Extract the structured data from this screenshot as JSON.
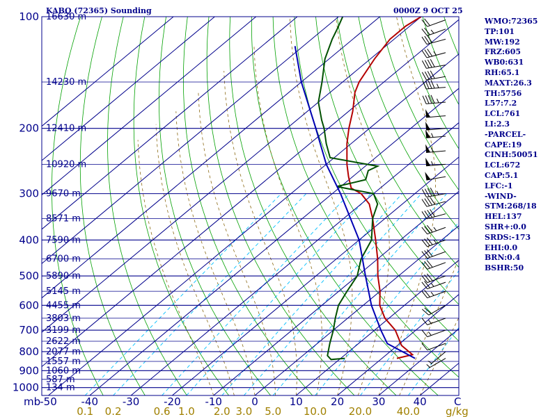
{
  "header": {
    "station_title": "KABQ (72365) Sounding",
    "valid_time": "0000Z  9 OCT 25"
  },
  "indices": [
    "WMO:72365",
    "TP:101",
    "MW:192",
    "FRZ:605",
    "WB0:631",
    "RH:65.1",
    "MAXT:26.3",
    "TH:5756",
    "L57:7.2",
    "LCL:761",
    "LI:2.3",
    "-PARCEL-",
    "CAPE:19",
    "CINH:50051",
    "LCL:672",
    "CAP:5.1",
    "LFC:-1",
    "-WIND-",
    "STM:268/18",
    "HEL:137",
    "SHR+:0.0",
    "SRDS:-173",
    "EHI:0.0",
    "BRN:0.4",
    "BSHR:50"
  ],
  "colors": {
    "isobar": "#00008b",
    "isotherm": "#00008b",
    "dry_adiabat": "#00a000",
    "moist_adiabat": "#8b6914",
    "mixing_ratio": "#00bfff",
    "temperature": "#b40000",
    "dewpoint": "#005000",
    "parcel": "#0000b4",
    "text": "#00008b",
    "mixing_ratio_label": "#a08000",
    "wind_barb": "#000000"
  },
  "chart_data": {
    "type": "skew-t",
    "xlabel": "C",
    "ylabel": "mb",
    "pressure_levels": [
      100,
      200,
      300,
      400,
      500,
      600,
      700,
      800,
      900,
      1000
    ],
    "pressure_range": [
      1000,
      100
    ],
    "temperature_ticks": [
      -50,
      -40,
      -30,
      -20,
      -10,
      0,
      10,
      20,
      30,
      40
    ],
    "mixing_ratio_labels": [
      "0.1",
      "0.2",
      "0.6",
      "1.0",
      "2.0",
      "3.0",
      "5.0",
      "10.0",
      "20.0",
      "40.0"
    ],
    "mixing_ratio_label": "g/kg",
    "height_labels": [
      {
        "p": 100,
        "text": "16630 m"
      },
      {
        "p": 150,
        "text": "14230 m"
      },
      {
        "p": 200,
        "text": "12410 m"
      },
      {
        "p": 250,
        "text": "10920 m"
      },
      {
        "p": 300,
        "text": "9670 m"
      },
      {
        "p": 350,
        "text": "8571 m"
      },
      {
        "p": 400,
        "text": "7590 m"
      },
      {
        "p": 450,
        "text": "6700 m"
      },
      {
        "p": 500,
        "text": "5890 m"
      },
      {
        "p": 550,
        "text": "5145 m"
      },
      {
        "p": 600,
        "text": "4455 m"
      },
      {
        "p": 650,
        "text": "3803 m"
      },
      {
        "p": 700,
        "text": "3199 m"
      },
      {
        "p": 750,
        "text": "2622 m"
      },
      {
        "p": 800,
        "text": "2077 m"
      },
      {
        "p": 850,
        "text": "1557 m"
      },
      {
        "p": 900,
        "text": "1060 m"
      },
      {
        "p": 950,
        "text": "587 m"
      },
      {
        "p": 1000,
        "text": "134 m"
      }
    ],
    "series": [
      {
        "name": "temperature",
        "points": [
          {
            "p": 834,
            "t": 23.6
          },
          {
            "p": 815,
            "t": 26.3
          },
          {
            "p": 770,
            "t": 21.0
          },
          {
            "p": 700,
            "t": 15.0
          },
          {
            "p": 650,
            "t": 9.0
          },
          {
            "p": 600,
            "t": 4.0
          },
          {
            "p": 550,
            "t": 0.0
          },
          {
            "p": 500,
            "t": -5.0
          },
          {
            "p": 450,
            "t": -10.0
          },
          {
            "p": 400,
            "t": -16.0
          },
          {
            "p": 350,
            "t": -23.0
          },
          {
            "p": 320,
            "t": -28.0
          },
          {
            "p": 300,
            "t": -33.0
          },
          {
            "p": 290,
            "t": -37.0
          },
          {
            "p": 270,
            "t": -41.0
          },
          {
            "p": 250,
            "t": -45.0
          },
          {
            "p": 220,
            "t": -51.0
          },
          {
            "p": 200,
            "t": -55.0
          },
          {
            "p": 180,
            "t": -59.0
          },
          {
            "p": 160,
            "t": -64.0
          },
          {
            "p": 150,
            "t": -66.0
          },
          {
            "p": 130,
            "t": -69.0
          },
          {
            "p": 115,
            "t": -71.0
          },
          {
            "p": 106,
            "t": -71.0
          },
          {
            "p": 100,
            "t": -70.0
          }
        ]
      },
      {
        "name": "dewpoint",
        "points": [
          {
            "p": 834,
            "t": 11.0
          },
          {
            "p": 840,
            "t": 8.0
          },
          {
            "p": 820,
            "t": 6.0
          },
          {
            "p": 760,
            "t": 3.0
          },
          {
            "p": 700,
            "t": 0.0
          },
          {
            "p": 650,
            "t": -3.0
          },
          {
            "p": 600,
            "t": -6.0
          },
          {
            "p": 550,
            "t": -8.0
          },
          {
            "p": 500,
            "t": -10.0
          },
          {
            "p": 450,
            "t": -14.0
          },
          {
            "p": 400,
            "t": -17.0
          },
          {
            "p": 350,
            "t": -23.0
          },
          {
            "p": 320,
            "t": -26.0
          },
          {
            "p": 300,
            "t": -30.0
          },
          {
            "p": 287,
            "t": -41.0
          },
          {
            "p": 275,
            "t": -36.0
          },
          {
            "p": 260,
            "t": -38.0
          },
          {
            "p": 253,
            "t": -37.0
          },
          {
            "p": 240,
            "t": -51.0
          },
          {
            "p": 220,
            "t": -56.0
          },
          {
            "p": 200,
            "t": -61.0
          },
          {
            "p": 190,
            "t": -64.0
          },
          {
            "p": 170,
            "t": -70.0
          },
          {
            "p": 150,
            "t": -75.0
          },
          {
            "p": 130,
            "t": -81.0
          },
          {
            "p": 115,
            "t": -85.0
          },
          {
            "p": 107,
            "t": -87.0
          },
          {
            "p": 100,
            "t": -89.0
          }
        ]
      },
      {
        "name": "parcel",
        "points": [
          {
            "p": 834,
            "t": 28.0
          },
          {
            "p": 761,
            "t": 17.0
          },
          {
            "p": 700,
            "t": 11.5
          },
          {
            "p": 600,
            "t": 2.0
          },
          {
            "p": 500,
            "t": -8.0
          },
          {
            "p": 400,
            "t": -20.0
          },
          {
            "p": 300,
            "t": -38.0
          },
          {
            "p": 250,
            "t": -50.0
          },
          {
            "p": 200,
            "t": -63.0
          },
          {
            "p": 150,
            "t": -80.0
          },
          {
            "p": 120,
            "t": -92.0
          }
        ]
      }
    ],
    "wind_barbs": [
      {
        "p": 834,
        "dir": 240,
        "spd": 5
      },
      {
        "p": 800,
        "dir": 230,
        "spd": 5
      },
      {
        "p": 760,
        "dir": 250,
        "spd": 10
      },
      {
        "p": 700,
        "dir": 250,
        "spd": 15
      },
      {
        "p": 650,
        "dir": 250,
        "spd": 15
      },
      {
        "p": 600,
        "dir": 240,
        "spd": 20
      },
      {
        "p": 550,
        "dir": 250,
        "spd": 25
      },
      {
        "p": 520,
        "dir": 250,
        "spd": 25
      },
      {
        "p": 500,
        "dir": 250,
        "spd": 30
      },
      {
        "p": 460,
        "dir": 250,
        "spd": 30
      },
      {
        "p": 430,
        "dir": 250,
        "spd": 30
      },
      {
        "p": 400,
        "dir": 250,
        "spd": 35
      },
      {
        "p": 370,
        "dir": 250,
        "spd": 35
      },
      {
        "p": 340,
        "dir": 255,
        "spd": 40
      },
      {
        "p": 315,
        "dir": 255,
        "spd": 40
      },
      {
        "p": 300,
        "dir": 260,
        "spd": 45
      },
      {
        "p": 270,
        "dir": 260,
        "spd": 50
      },
      {
        "p": 250,
        "dir": 265,
        "spd": 55
      },
      {
        "p": 230,
        "dir": 265,
        "spd": 55
      },
      {
        "p": 210,
        "dir": 265,
        "spd": 55
      },
      {
        "p": 200,
        "dir": 265,
        "spd": 50
      },
      {
        "p": 185,
        "dir": 265,
        "spd": 50
      },
      {
        "p": 170,
        "dir": 265,
        "spd": 45
      },
      {
        "p": 155,
        "dir": 265,
        "spd": 45
      },
      {
        "p": 145,
        "dir": 260,
        "spd": 40
      },
      {
        "p": 135,
        "dir": 260,
        "spd": 40
      },
      {
        "p": 125,
        "dir": 255,
        "spd": 35
      },
      {
        "p": 115,
        "dir": 255,
        "spd": 30
      },
      {
        "p": 108,
        "dir": 250,
        "spd": 25
      },
      {
        "p": 102,
        "dir": 250,
        "spd": 20
      }
    ]
  }
}
